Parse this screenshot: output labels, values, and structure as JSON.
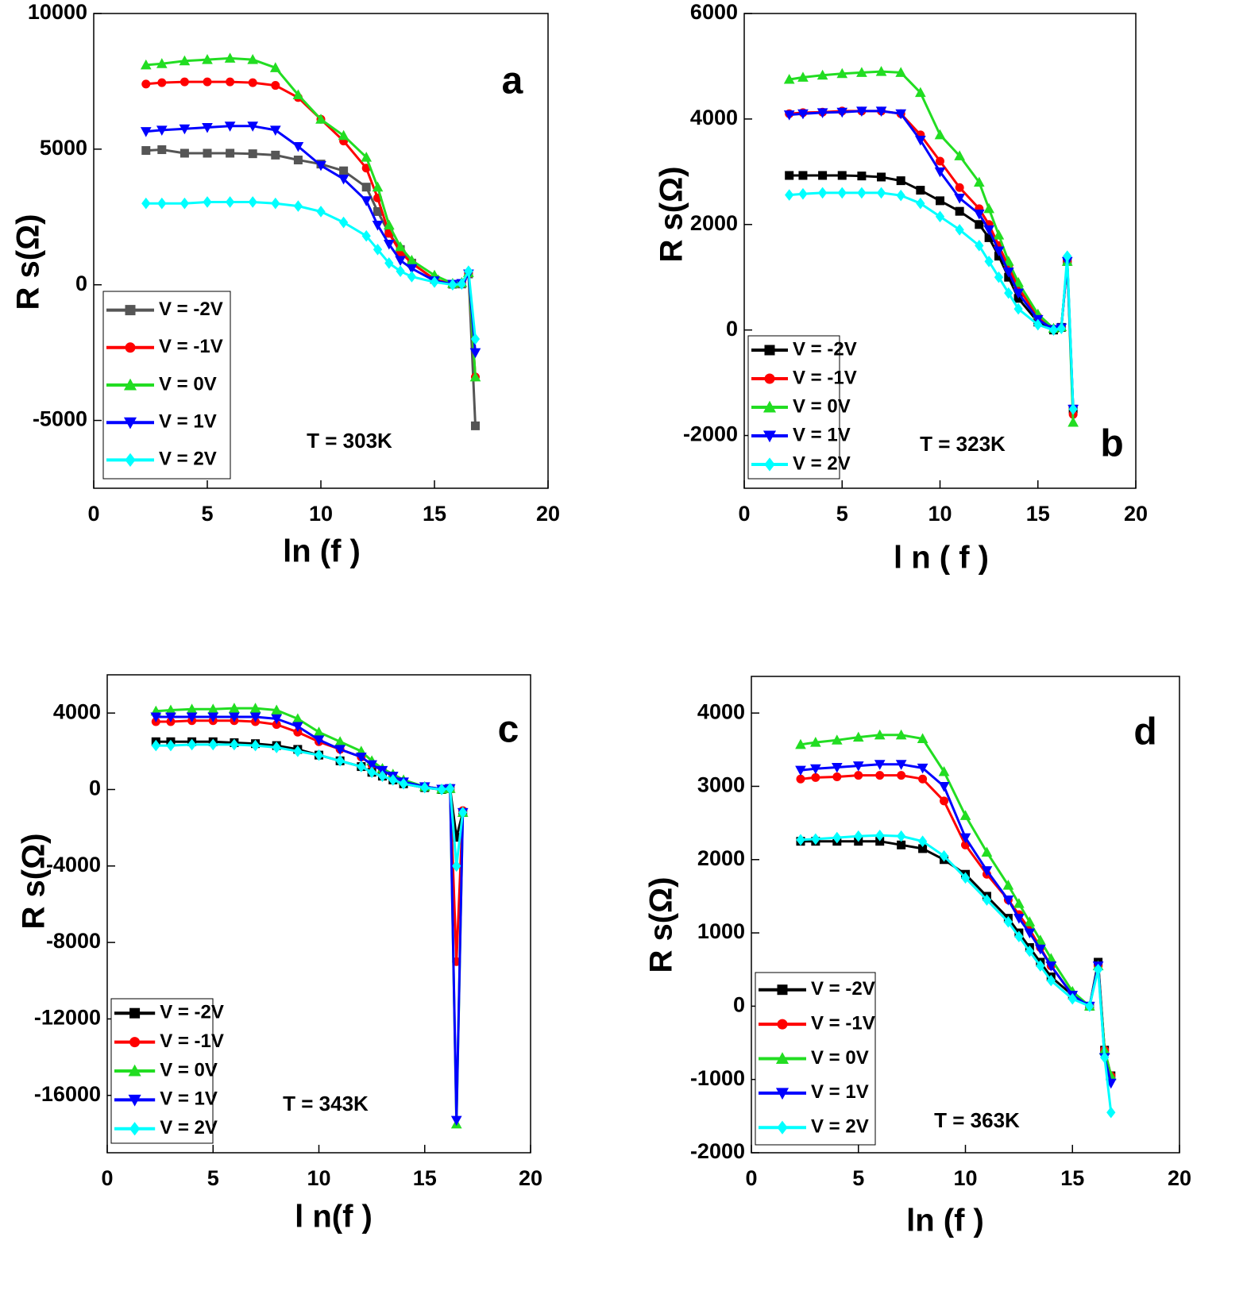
{
  "chart_data": [
    {
      "type": "line",
      "panel_label": "a",
      "annotation": "T = 303K",
      "x_label": "ln (f )",
      "y_label": "R s(Ω)",
      "xlim": [
        0,
        20
      ],
      "xticks": [
        0,
        5,
        10,
        15,
        20
      ],
      "ylim": [
        -7500,
        10000
      ],
      "yticks": [
        -5000,
        0,
        5000,
        10000
      ],
      "legend": "lower left",
      "x": [
        2.3,
        3,
        4,
        5,
        6,
        7,
        8,
        9,
        10,
        11,
        12,
        12.5,
        13,
        13.5,
        14,
        15,
        15.8,
        16.2,
        16.5,
        16.8
      ],
      "series": [
        {
          "name": "V = -2V",
          "color": "#555555",
          "marker": "square",
          "values": [
            4950,
            4980,
            4850,
            4850,
            4850,
            4830,
            4780,
            4600,
            4450,
            4200,
            3600,
            2700,
            1900,
            1300,
            800,
            200,
            20,
            30,
            400,
            -5200
          ]
        },
        {
          "name": "V = -1V",
          "color": "#ff0000",
          "marker": "circle",
          "values": [
            7400,
            7450,
            7480,
            7480,
            7480,
            7450,
            7350,
            6900,
            6100,
            5300,
            4300,
            3200,
            1900,
            1200,
            800,
            200,
            20,
            50,
            400,
            -3400
          ]
        },
        {
          "name": "V = 0V",
          "color": "#22dd22",
          "marker": "triangle-up",
          "values": [
            8100,
            8150,
            8250,
            8300,
            8350,
            8300,
            8000,
            7000,
            6100,
            5500,
            4700,
            3600,
            2200,
            1400,
            900,
            350,
            50,
            80,
            450,
            -3400
          ]
        },
        {
          "name": "V = 1V",
          "color": "#0000ff",
          "marker": "triangle-down",
          "values": [
            5650,
            5700,
            5750,
            5800,
            5850,
            5850,
            5700,
            5100,
            4400,
            3900,
            3100,
            2200,
            1500,
            900,
            600,
            150,
            20,
            50,
            400,
            -2500
          ]
        },
        {
          "name": "V = 2V",
          "color": "#00ffff",
          "marker": "diamond",
          "values": [
            3000,
            3000,
            3000,
            3050,
            3050,
            3050,
            3000,
            2900,
            2700,
            2300,
            1800,
            1300,
            800,
            500,
            300,
            100,
            0,
            30,
            500,
            -2000
          ]
        }
      ]
    },
    {
      "type": "line",
      "panel_label": "b",
      "annotation": "T = 323K",
      "x_label": "l n ( f )",
      "y_label": "R s(Ω)",
      "xlim": [
        0,
        20
      ],
      "xticks": [
        0,
        5,
        10,
        15,
        20
      ],
      "ylim": [
        -3000,
        6000
      ],
      "yticks": [
        -2000,
        0,
        2000,
        4000,
        6000
      ],
      "legend": "lower left",
      "x": [
        2.3,
        3,
        4,
        5,
        6,
        7,
        8,
        9,
        10,
        11,
        12,
        12.5,
        13,
        13.5,
        14,
        15,
        15.8,
        16.2,
        16.5,
        16.8
      ],
      "series": [
        {
          "name": "V = -2V",
          "color": "#000000",
          "marker": "square",
          "values": [
            2930,
            2930,
            2930,
            2930,
            2920,
            2900,
            2830,
            2650,
            2450,
            2250,
            2000,
            1750,
            1400,
            1000,
            600,
            150,
            0,
            50,
            1300,
            -1500
          ]
        },
        {
          "name": "V = -1V",
          "color": "#ff0000",
          "marker": "circle",
          "values": [
            4100,
            4120,
            4130,
            4150,
            4150,
            4150,
            4100,
            3700,
            3200,
            2700,
            2300,
            2000,
            1600,
            1200,
            800,
            250,
            20,
            50,
            1300,
            -1600
          ]
        },
        {
          "name": "V = 0V",
          "color": "#22dd22",
          "marker": "triangle-up",
          "values": [
            4750,
            4790,
            4830,
            4860,
            4880,
            4900,
            4880,
            4500,
            3700,
            3300,
            2800,
            2300,
            1800,
            1300,
            900,
            300,
            30,
            60,
            1300,
            -1750
          ]
        },
        {
          "name": "V = 1V",
          "color": "#0000ff",
          "marker": "triangle-down",
          "values": [
            4080,
            4100,
            4120,
            4130,
            4150,
            4150,
            4100,
            3600,
            3000,
            2500,
            2200,
            1900,
            1500,
            1100,
            700,
            200,
            10,
            40,
            1300,
            -1500
          ]
        },
        {
          "name": "V = 2V",
          "color": "#00ffff",
          "marker": "diamond",
          "values": [
            2560,
            2580,
            2600,
            2600,
            2600,
            2600,
            2550,
            2400,
            2150,
            1900,
            1600,
            1300,
            1000,
            700,
            400,
            100,
            0,
            30,
            1400,
            -1500
          ]
        }
      ]
    },
    {
      "type": "line",
      "panel_label": "c",
      "annotation": "T = 343K",
      "x_label": "l n(f )",
      "y_label": "R s(Ω)",
      "xlim": [
        0,
        20
      ],
      "xticks": [
        0,
        5,
        10,
        15,
        20
      ],
      "ylim": [
        -19000,
        6000
      ],
      "yticks": [
        -16000,
        -12000,
        -8000,
        -4000,
        0,
        4000
      ],
      "legend": "lower left",
      "x": [
        2.3,
        3,
        4,
        5,
        6,
        7,
        8,
        9,
        10,
        11,
        12,
        12.5,
        13,
        13.5,
        14,
        15,
        15.8,
        16.2,
        16.5,
        16.8
      ],
      "series": [
        {
          "name": "V = -2V",
          "color": "#000000",
          "marker": "square",
          "values": [
            2500,
            2500,
            2500,
            2500,
            2450,
            2400,
            2300,
            2100,
            1800,
            1500,
            1200,
            900,
            700,
            500,
            300,
            100,
            0,
            50,
            -2500,
            -1200
          ]
        },
        {
          "name": "V = -1V",
          "color": "#ff0000",
          "marker": "circle",
          "values": [
            3550,
            3550,
            3600,
            3600,
            3600,
            3550,
            3400,
            3000,
            2500,
            2100,
            1700,
            1300,
            1000,
            700,
            400,
            150,
            20,
            50,
            -9000,
            -1100
          ]
        },
        {
          "name": "V = 0V",
          "color": "#22dd22",
          "marker": "triangle-up",
          "values": [
            4100,
            4150,
            4200,
            4200,
            4250,
            4250,
            4150,
            3700,
            3000,
            2500,
            2000,
            1500,
            1100,
            800,
            500,
            150,
            20,
            50,
            -17500,
            -1200
          ]
        },
        {
          "name": "V = 1V",
          "color": "#0000ff",
          "marker": "triangle-down",
          "values": [
            3800,
            3800,
            3800,
            3800,
            3800,
            3800,
            3700,
            3300,
            2600,
            2100,
            1700,
            1300,
            1000,
            700,
            400,
            150,
            20,
            50,
            -17300,
            -1200
          ]
        },
        {
          "name": "V = 2V",
          "color": "#00ffff",
          "marker": "diamond",
          "values": [
            2300,
            2300,
            2350,
            2350,
            2350,
            2300,
            2200,
            2000,
            1800,
            1500,
            1200,
            900,
            700,
            500,
            300,
            100,
            0,
            50,
            -4000,
            -1200
          ]
        }
      ]
    },
    {
      "type": "line",
      "panel_label": "d",
      "annotation": "T = 363K",
      "x_label": "ln (f )",
      "y_label": "R s(Ω)",
      "xlim": [
        0,
        20
      ],
      "xticks": [
        0,
        5,
        10,
        15,
        20
      ],
      "ylim": [
        -2000,
        4500
      ],
      "yticks": [
        -2000,
        -1000,
        0,
        1000,
        2000,
        3000,
        4000
      ],
      "legend": "lower left",
      "x": [
        2.3,
        3,
        4,
        5,
        6,
        7,
        8,
        9,
        10,
        11,
        12,
        12.5,
        13,
        13.5,
        14,
        15,
        15.8,
        16.2,
        16.5,
        16.8
      ],
      "series": [
        {
          "name": "V = -2V",
          "color": "#000000",
          "marker": "square",
          "values": [
            2250,
            2250,
            2250,
            2250,
            2250,
            2200,
            2150,
            2000,
            1800,
            1500,
            1200,
            1000,
            800,
            600,
            400,
            150,
            0,
            600,
            -600,
            -950
          ]
        },
        {
          "name": "V = -1V",
          "color": "#ff0000",
          "marker": "circle",
          "values": [
            3100,
            3120,
            3130,
            3150,
            3150,
            3150,
            3100,
            2800,
            2200,
            1800,
            1450,
            1250,
            1050,
            800,
            550,
            150,
            0,
            550,
            -600,
            -950
          ]
        },
        {
          "name": "V = 0V",
          "color": "#22dd22",
          "marker": "triangle-up",
          "values": [
            3570,
            3600,
            3630,
            3670,
            3700,
            3700,
            3650,
            3200,
            2600,
            2100,
            1650,
            1400,
            1150,
            900,
            650,
            200,
            0,
            550,
            -600,
            -950
          ]
        },
        {
          "name": "V = 1V",
          "color": "#0000ff",
          "marker": "triangle-down",
          "values": [
            3220,
            3240,
            3260,
            3280,
            3300,
            3300,
            3250,
            3000,
            2300,
            1850,
            1450,
            1200,
            1000,
            780,
            550,
            150,
            0,
            550,
            -700,
            -1050
          ]
        },
        {
          "name": "V = 2V",
          "color": "#00ffff",
          "marker": "diamond",
          "values": [
            2270,
            2280,
            2300,
            2320,
            2330,
            2320,
            2250,
            2050,
            1750,
            1450,
            1150,
            950,
            750,
            550,
            350,
            100,
            0,
            500,
            -700,
            -1450
          ]
        }
      ]
    }
  ]
}
